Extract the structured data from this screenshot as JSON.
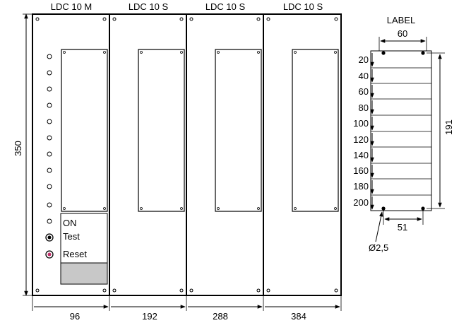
{
  "modules": [
    {
      "label": "LDC 10 M"
    },
    {
      "label": "LDC 10 S"
    },
    {
      "label": "LDC 10 S"
    },
    {
      "label": "LDC 10 S"
    }
  ],
  "height_label": "350",
  "bottom_dims": [
    "96",
    "192",
    "288",
    "384"
  ],
  "master_panel": {
    "on_label": "ON",
    "test_label": "Test",
    "reset_label": "Reset",
    "reset_color": "#c0306a"
  },
  "label_detail": {
    "title": "LABEL",
    "width_label": "60",
    "height_label": "191",
    "hole_spacing_label": "51",
    "hole_diameter_label": "Ø2,5",
    "rows": [
      "20",
      "40",
      "60",
      "80",
      "100",
      "120",
      "140",
      "160",
      "180",
      "200"
    ]
  },
  "colors": {
    "line": "#000000",
    "shaded_panel": "#c8c8c8"
  }
}
